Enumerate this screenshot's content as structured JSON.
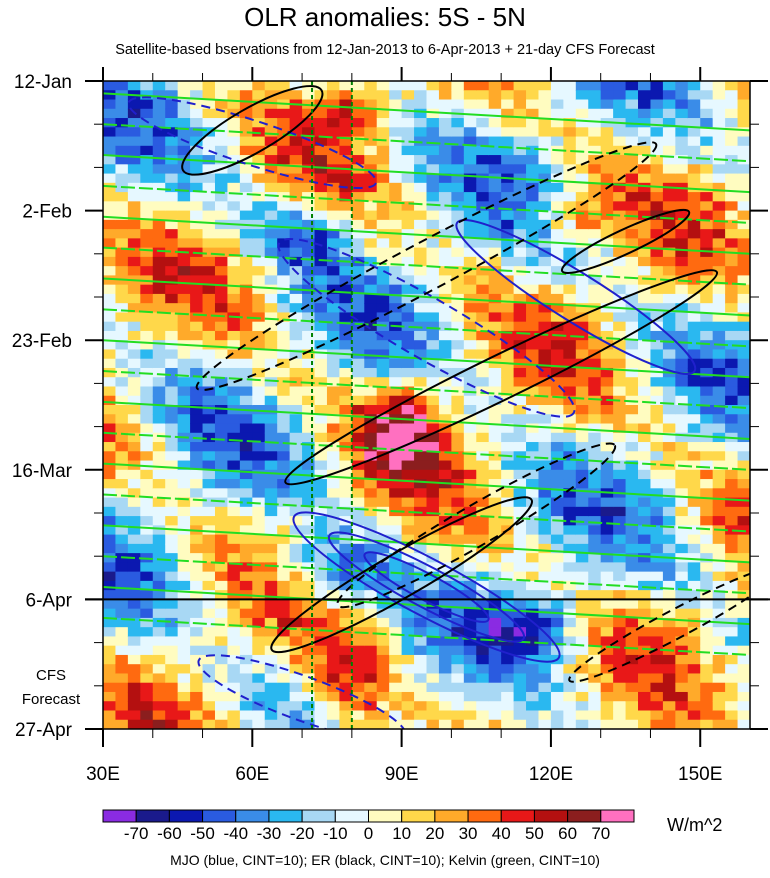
{
  "chart_data": {
    "type": "heatmap",
    "title": "OLR anomalies: 5S - 5N",
    "subtitle": "Satellite-based bservations from 12-Jan-2013 to 6-Apr-2013 + 21-day CFS Forecast",
    "x_ticks": [
      {
        "value": 30,
        "label": "30E"
      },
      {
        "value": 60,
        "label": "60E"
      },
      {
        "value": 90,
        "label": "90E"
      },
      {
        "value": 120,
        "label": "120E"
      },
      {
        "value": 150,
        "label": "150E"
      }
    ],
    "xlim": [
      30,
      160
    ],
    "y_ticks": [
      {
        "value": 0,
        "label": "12-Jan"
      },
      {
        "value": 21,
        "label": "2-Feb"
      },
      {
        "value": 42,
        "label": "23-Feb"
      },
      {
        "value": 63,
        "label": "16-Mar"
      },
      {
        "value": 84,
        "label": "6-Apr"
      },
      {
        "value": 105,
        "label": "27-Apr"
      }
    ],
    "ylim_days": [
      0,
      105
    ],
    "forecast_start_day": 84,
    "forecast_label": [
      "CFS",
      "Forecast"
    ],
    "reference_longitudes": [
      72,
      80
    ],
    "colorbar": {
      "labels": [
        "-70",
        "-60",
        "-50",
        "-40",
        "-30",
        "-20",
        "-10",
        "0",
        "10",
        "20",
        "30",
        "40",
        "50",
        "60",
        "70"
      ],
      "colors": [
        "#8a2be2",
        "#1a1a8c",
        "#0b18b0",
        "#2a5be0",
        "#3a8ce8",
        "#2ab8f0",
        "#a8d8f4",
        "#e6f8ff",
        "#fffcc0",
        "#ffd84a",
        "#ffaa2a",
        "#ff6a10",
        "#e81818",
        "#b41010",
        "#8b1e1e",
        "#ff70c0"
      ],
      "units": "W/m^2"
    },
    "overlays": "MJO (blue, CINT=10); ER (black, CINT=10); Kelvin (green, CINT=10)",
    "line_colors": {
      "mjo": "#2020cc",
      "er": "#000000",
      "kelvin": "#22dd22",
      "reference": "#008000"
    }
  }
}
